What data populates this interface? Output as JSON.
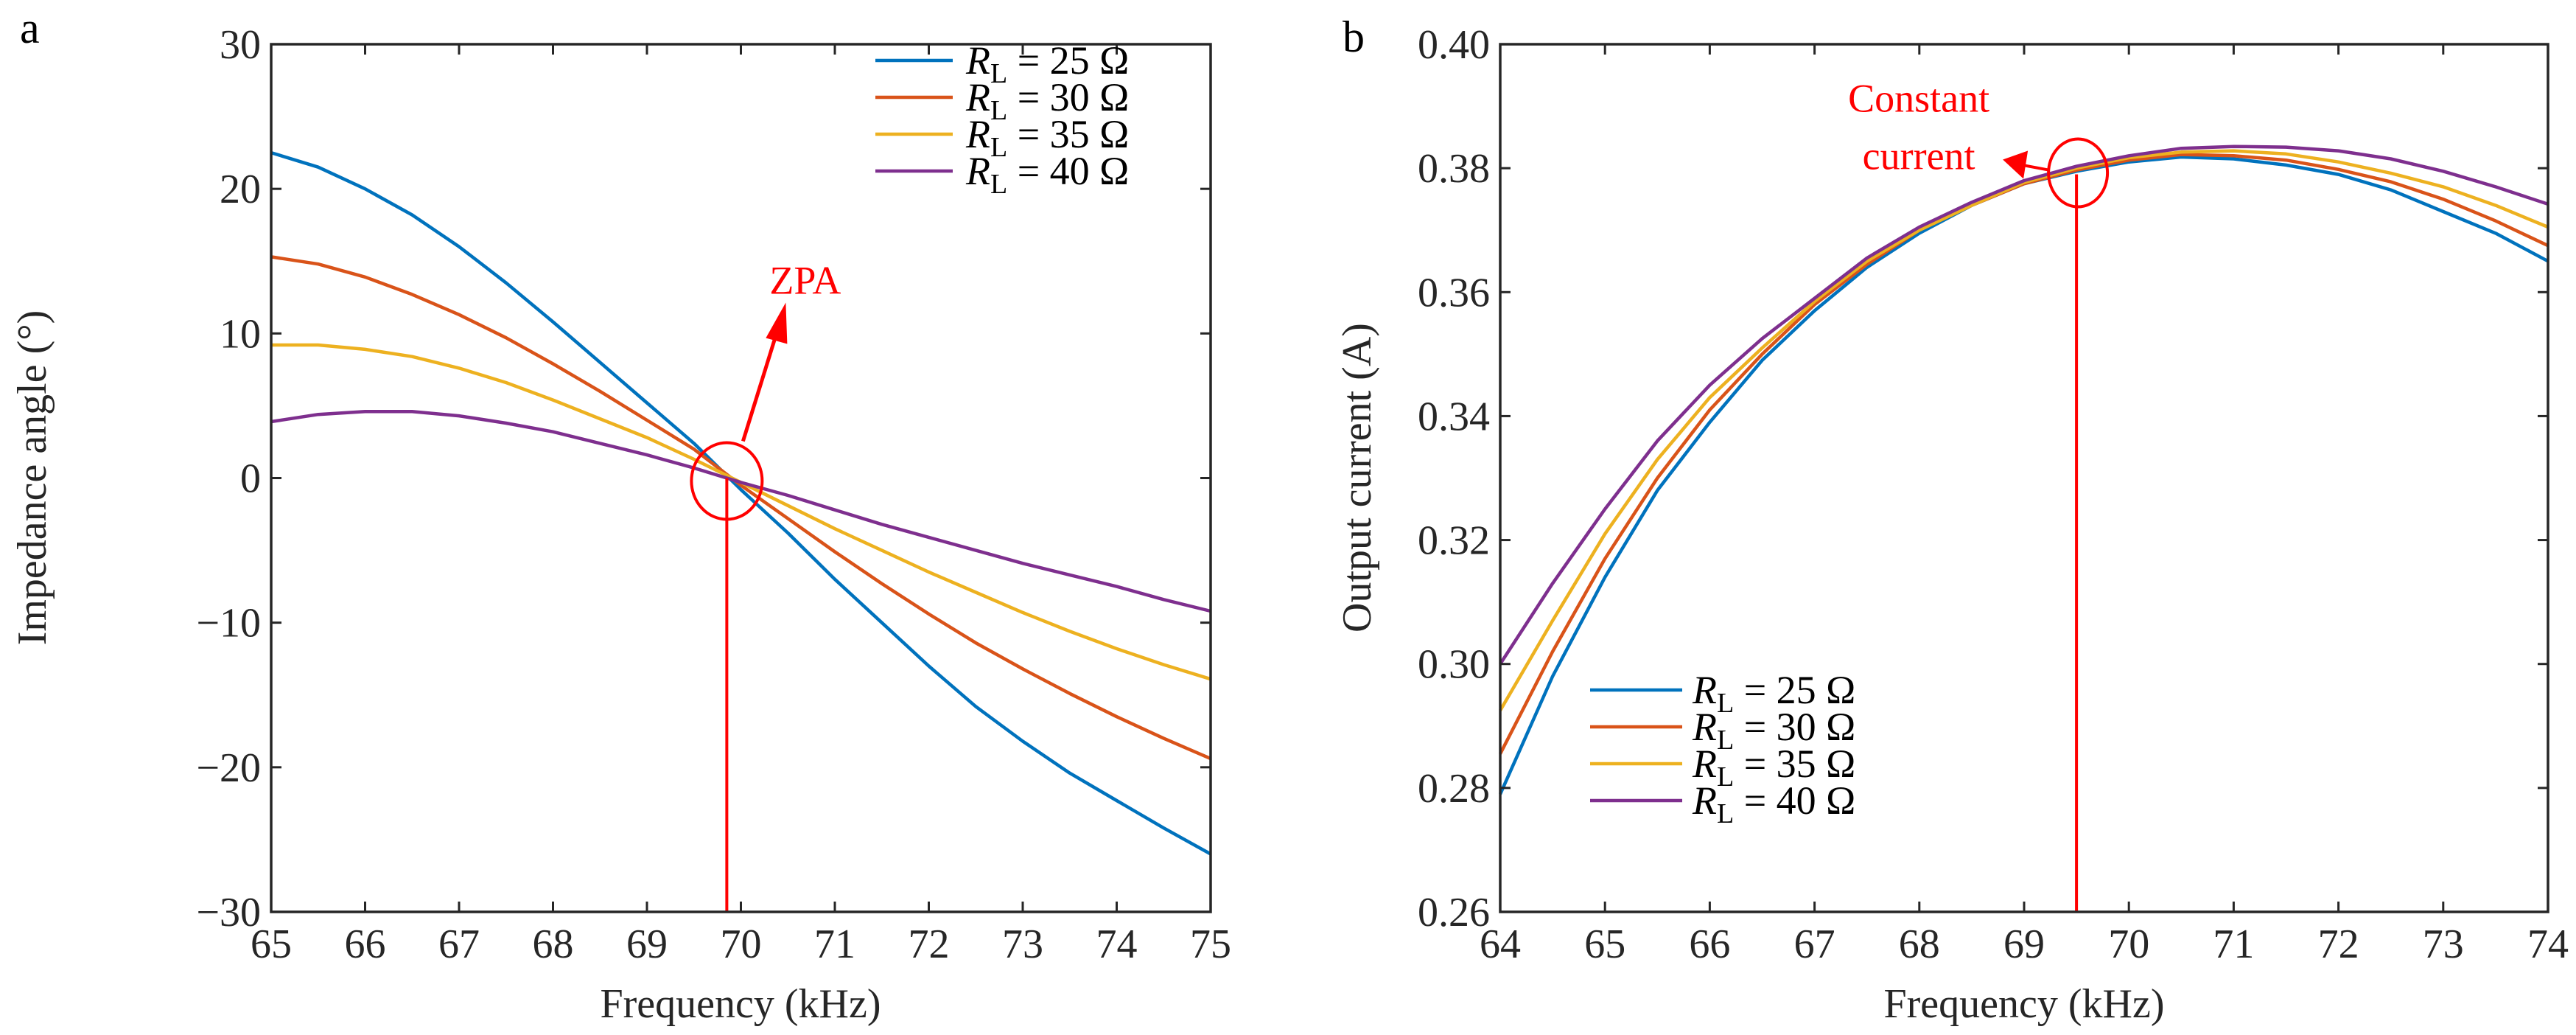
{
  "chart_data": [
    {
      "panel_label": "a",
      "type": "line",
      "xlabel": "Frequency (kHz)",
      "ylabel": "Impedance angle (°)",
      "xlim": [
        65,
        75
      ],
      "ylim": [
        -30,
        30
      ],
      "xticks": [
        65,
        66,
        67,
        68,
        69,
        70,
        71,
        72,
        73,
        74,
        75
      ],
      "yticks": [
        -30,
        -20,
        -10,
        0,
        10,
        20,
        30
      ],
      "ytick_labels": [
        "−30",
        "−20",
        "−10",
        "0",
        "10",
        "20",
        "30"
      ],
      "grid": false,
      "legend_placement": "top-right",
      "x": [
        65,
        65.5,
        66,
        66.5,
        67,
        67.5,
        68,
        68.5,
        69,
        69.5,
        70,
        70.5,
        71,
        71.5,
        72,
        72.5,
        73,
        73.5,
        74,
        74.5,
        75
      ],
      "series": [
        {
          "name": "R_L = 25 Ω",
          "legend_italic": "R",
          "legend_sub": "L",
          "legend_rest": " = 25 Ω",
          "color": "#0072BD",
          "values": [
            22.5,
            21.5,
            20,
            18.2,
            16,
            13.5,
            10.8,
            8,
            5.2,
            2.4,
            -0.8,
            -3.8,
            -7,
            -10,
            -13,
            -15.8,
            -18.2,
            -20.4,
            -22.3,
            -24.2,
            -26
          ]
        },
        {
          "name": "R_L = 30 Ω",
          "legend_italic": "R",
          "legend_sub": "L",
          "legend_rest": " = 30 Ω",
          "color": "#D95319",
          "values": [
            15.3,
            14.8,
            13.9,
            12.7,
            11.3,
            9.7,
            7.9,
            6,
            4,
            2,
            -0.5,
            -2.8,
            -5.1,
            -7.3,
            -9.4,
            -11.4,
            -13.2,
            -14.9,
            -16.5,
            -18,
            -19.4
          ]
        },
        {
          "name": "R_L = 35 Ω",
          "legend_italic": "R",
          "legend_sub": "L",
          "legend_rest": " = 35 Ω",
          "color": "#EDB120",
          "values": [
            9.2,
            9.2,
            8.9,
            8.4,
            7.6,
            6.6,
            5.4,
            4.1,
            2.8,
            1.3,
            -0.3,
            -1.9,
            -3.5,
            -5,
            -6.5,
            -7.9,
            -9.3,
            -10.6,
            -11.8,
            -12.9,
            -13.9
          ]
        },
        {
          "name": "R_L = 40 Ω",
          "legend_italic": "R",
          "legend_sub": "L",
          "legend_rest": " = 40 Ω",
          "color": "#7E2F8E",
          "values": [
            3.9,
            4.4,
            4.6,
            4.6,
            4.3,
            3.8,
            3.2,
            2.4,
            1.6,
            0.7,
            -0.3,
            -1.2,
            -2.2,
            -3.2,
            -4.1,
            -5,
            -5.9,
            -6.7,
            -7.5,
            -8.4,
            -9.2
          ]
        }
      ],
      "annotation": {
        "text": "ZPA",
        "lines": [],
        "x": 69.85,
        "y": 0,
        "color": "#FF0000"
      }
    },
    {
      "panel_label": "b",
      "type": "line",
      "xlabel": "Frequency (kHz)",
      "ylabel": "Output current (A)",
      "xlim": [
        64,
        74
      ],
      "ylim": [
        0.26,
        0.4
      ],
      "xticks": [
        64,
        65,
        66,
        67,
        68,
        69,
        70,
        71,
        72,
        73,
        74
      ],
      "yticks": [
        0.26,
        0.28,
        0.3,
        0.32,
        0.34,
        0.36,
        0.38,
        0.4
      ],
      "ytick_labels": [
        "0.26",
        "0.28",
        "0.30",
        "0.32",
        "0.34",
        "0.36",
        "0.38",
        "0.40"
      ],
      "grid": false,
      "legend_placement": "bottom-left",
      "x": [
        64,
        64.5,
        65,
        65.5,
        66,
        66.5,
        67,
        67.5,
        68,
        68.5,
        69,
        69.5,
        70,
        70.5,
        71,
        71.5,
        72,
        72.5,
        73,
        73.5,
        74
      ],
      "series": [
        {
          "name": "R_L = 25 Ω",
          "legend_italic": "R",
          "legend_sub": "L",
          "legend_rest": " = 25 Ω",
          "color": "#0072BD",
          "values": [
            0.279,
            0.298,
            0.314,
            0.328,
            0.339,
            0.349,
            0.357,
            0.364,
            0.3695,
            0.374,
            0.3775,
            0.3795,
            0.381,
            0.3818,
            0.3815,
            0.3805,
            0.379,
            0.3765,
            0.373,
            0.3695,
            0.365
          ]
        },
        {
          "name": "R_L = 30 Ω",
          "legend_italic": "R",
          "legend_sub": "L",
          "legend_rest": " = 30 Ω",
          "color": "#D95319",
          "values": [
            0.2855,
            0.302,
            0.317,
            0.33,
            0.341,
            0.35,
            0.358,
            0.3645,
            0.37,
            0.374,
            0.3775,
            0.3797,
            0.3813,
            0.3822,
            0.382,
            0.3813,
            0.3798,
            0.3778,
            0.375,
            0.3715,
            0.3675
          ]
        },
        {
          "name": "R_L = 35 Ω",
          "legend_italic": "R",
          "legend_sub": "L",
          "legend_rest": " = 35 Ω",
          "color": "#EDB120",
          "values": [
            0.2925,
            0.307,
            0.321,
            0.333,
            0.343,
            0.351,
            0.3585,
            0.365,
            0.37,
            0.374,
            0.3777,
            0.38,
            0.3817,
            0.3826,
            0.3828,
            0.3823,
            0.381,
            0.3792,
            0.377,
            0.374,
            0.3705
          ]
        },
        {
          "name": "R_L = 40 Ω",
          "legend_italic": "R",
          "legend_sub": "L",
          "legend_rest": " = 40 Ω",
          "color": "#7E2F8E",
          "values": [
            0.3,
            0.313,
            0.325,
            0.336,
            0.345,
            0.3525,
            0.359,
            0.3655,
            0.3705,
            0.3745,
            0.378,
            0.3803,
            0.382,
            0.3832,
            0.3835,
            0.3834,
            0.3828,
            0.3815,
            0.3795,
            0.377,
            0.3742
          ]
        }
      ],
      "annotation": {
        "text": "",
        "lines": [
          "Constant",
          "current"
        ],
        "x": 69.5,
        "y": 0.379,
        "color": "#FF0000"
      }
    }
  ]
}
